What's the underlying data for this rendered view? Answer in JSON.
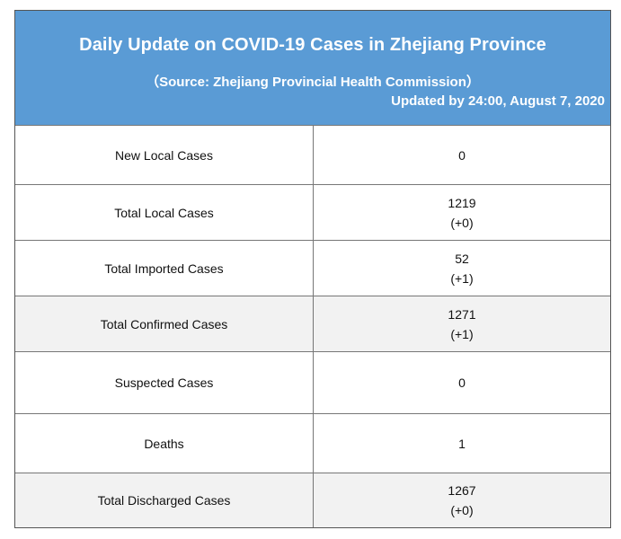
{
  "header": {
    "title": "Daily Update on COVID-19 Cases in Zhejiang Province",
    "source": "（Source: Zhejiang Provincial Health Commission）",
    "updated": "Updated by 24:00, August 7, 2020",
    "background_color": "#5a9bd5",
    "text_color": "#ffffff"
  },
  "rows": [
    {
      "label": "New Local Cases",
      "value": "0",
      "change": ""
    },
    {
      "label": "Total Local Cases",
      "value": "1219",
      "change": "(+0)"
    },
    {
      "label": "Total Imported Cases",
      "value": "52",
      "change": "(+1)"
    },
    {
      "label": "Total Confirmed Cases",
      "value": "1271",
      "change": "(+1)"
    },
    {
      "label": "Suspected Cases",
      "value": "0",
      "change": ""
    },
    {
      "label": "Deaths",
      "value": "1",
      "change": ""
    },
    {
      "label": "Total Discharged Cases",
      "value": "1267",
      "change": "(+0)"
    }
  ],
  "shaded_row_color": "#f2f2f2"
}
